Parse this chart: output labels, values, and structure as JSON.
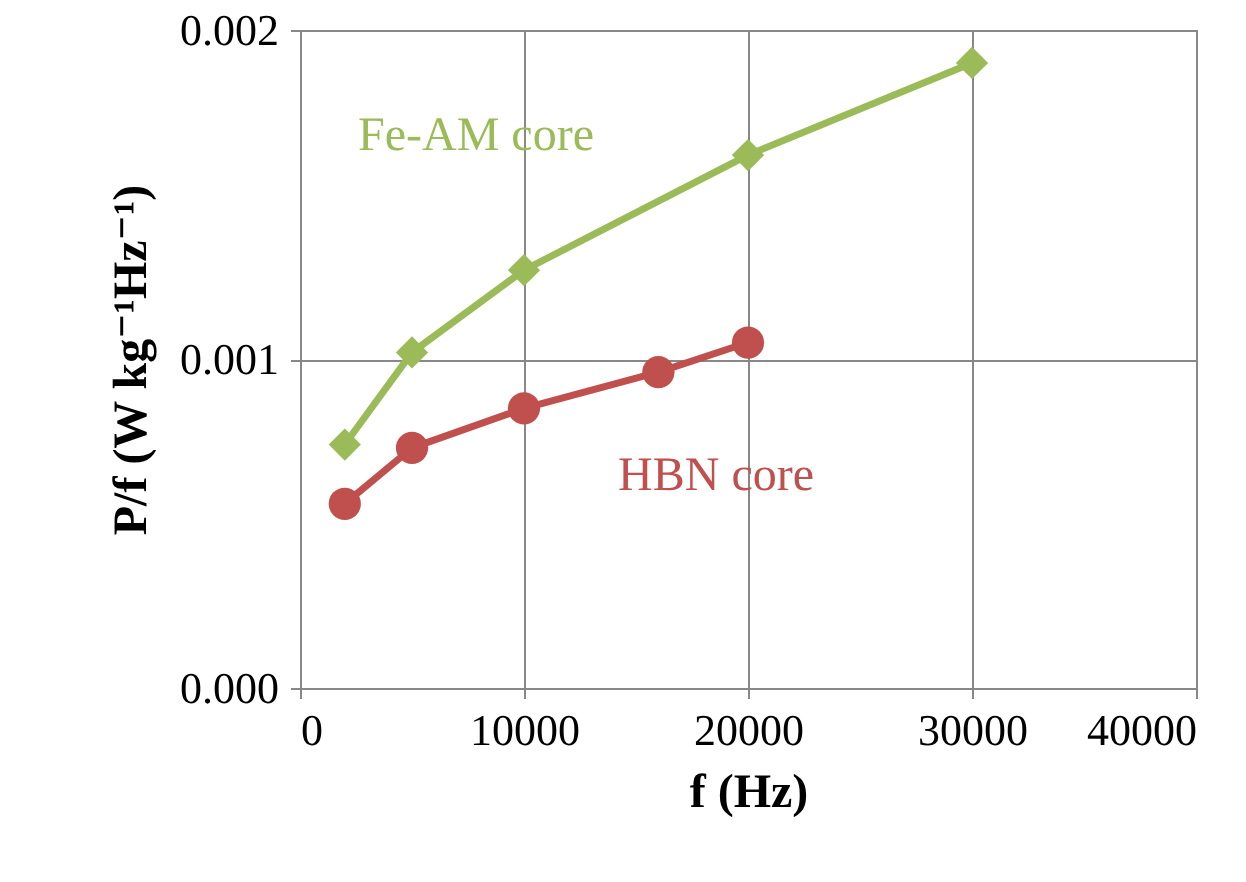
{
  "chart_data": {
    "type": "line",
    "xlabel": "f (Hz)",
    "ylabel": "P/f (W kg⁻¹Hz⁻¹)",
    "xlim": [
      0,
      40000
    ],
    "xticks": [
      0,
      10000,
      20000,
      30000,
      40000
    ],
    "ylim": [
      0,
      0.002
    ],
    "yticks": [
      {
        "value": 0,
        "label": "0.000"
      },
      {
        "value": 0.001,
        "label": "0.001"
      },
      {
        "value": 0.002,
        "label": "0.002"
      }
    ],
    "grid": true,
    "legend": false,
    "series": [
      {
        "name": "Fe-AM core",
        "color": "#9bbb59",
        "marker": "diamond",
        "x": [
          2000,
          5000,
          10000,
          20000,
          30000
        ],
        "values": [
          0.00074,
          0.00102,
          0.00127,
          0.00162,
          0.0019
        ]
      },
      {
        "name": "HBN core",
        "color": "#c0504d",
        "marker": "circle",
        "x": [
          2000,
          5000,
          10000,
          16000,
          20000
        ],
        "values": [
          0.00056,
          0.00073,
          0.00085,
          0.00096,
          0.00105
        ]
      }
    ]
  }
}
